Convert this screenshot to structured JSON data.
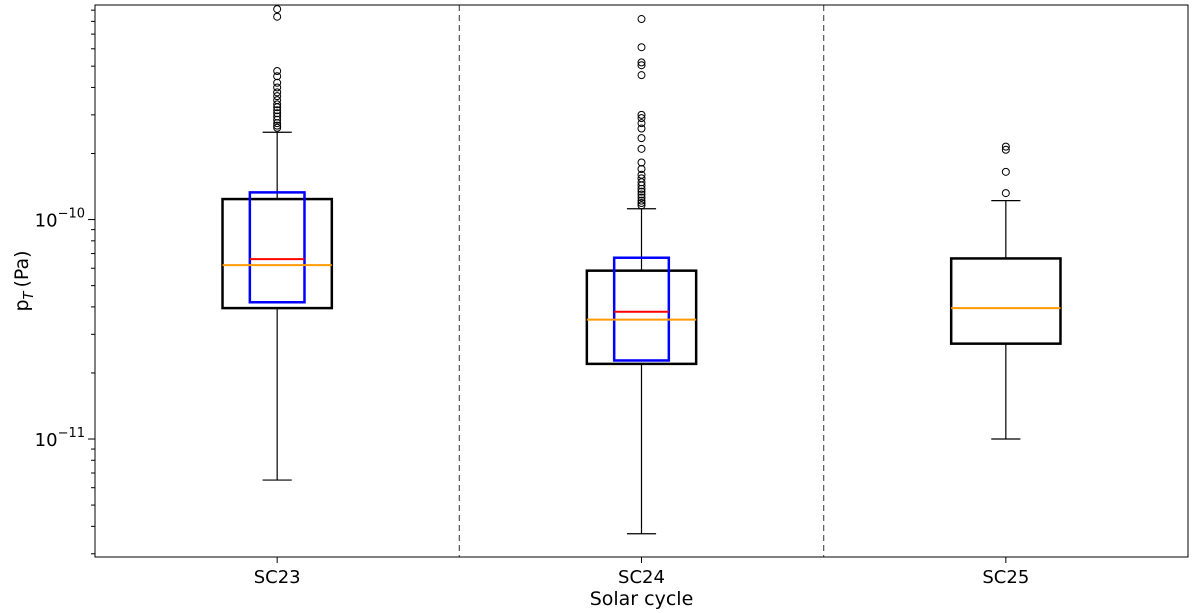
{
  "chart_data": {
    "type": "box",
    "xlabel": "Solar cycle",
    "ylabel": "p",
    "ylabel_sub": "T",
    "ylabel_unit": "(Pa)",
    "yscale": "log",
    "ylim": [
      2.9e-12,
      9.5e-10
    ],
    "grid": false,
    "categories": [
      "SC23",
      "SC24",
      "SC25"
    ],
    "y_major_ticks": [
      {
        "value": 1e-11,
        "base": "10",
        "exp": "−11"
      },
      {
        "value": 1e-10,
        "base": "10",
        "exp": "−10"
      }
    ],
    "boxes": [
      {
        "category": "SC23",
        "whisker_low": 6.5e-12,
        "q1": 3.95e-11,
        "median": 6.2e-11,
        "q3": 1.24e-10,
        "whisker_high": 2.5e-10,
        "outliers": [
          2.62e-10,
          2.68e-10,
          2.75e-10,
          2.85e-10,
          2.95e-10,
          3.05e-10,
          3.15e-10,
          3.25e-10,
          3.35e-10,
          3.5e-10,
          3.65e-10,
          3.8e-10,
          4e-10,
          4.2e-10,
          4.5e-10,
          4.75e-10,
          8.4e-10,
          9.1e-10
        ],
        "overlay": {
          "q1": 4.2e-11,
          "q3": 1.33e-10,
          "mean": 6.6e-11
        }
      },
      {
        "category": "SC24",
        "whisker_low": 3.7e-12,
        "q1": 2.2e-11,
        "median": 3.5e-11,
        "q3": 5.85e-11,
        "whisker_high": 1.12e-10,
        "outliers": [
          1.16e-10,
          1.19e-10,
          1.22e-10,
          1.26e-10,
          1.3e-10,
          1.34e-10,
          1.38e-10,
          1.43e-10,
          1.48e-10,
          1.54e-10,
          1.6e-10,
          1.7e-10,
          1.82e-10,
          2.1e-10,
          2.35e-10,
          2.6e-10,
          2.75e-10,
          2.9e-10,
          3e-10,
          4.55e-10,
          5.05e-10,
          5.2e-10,
          6.1e-10,
          8.2e-10
        ],
        "overlay": {
          "q1": 2.28e-11,
          "q3": 6.7e-11,
          "mean": 3.8e-11
        }
      },
      {
        "category": "SC25",
        "whisker_low": 1e-11,
        "q1": 2.72e-11,
        "median": 3.95e-11,
        "q3": 6.65e-11,
        "whisker_high": 1.22e-10,
        "outliers": [
          1.32e-10,
          1.65e-10,
          2.08e-10,
          2.15e-10
        ],
        "overlay": null
      }
    ],
    "colors": {
      "box": "#000000",
      "median": "#ff9900",
      "overlay_box": "#0000ff",
      "overlay_mean": "#ff0000",
      "separator": "#555555"
    }
  }
}
